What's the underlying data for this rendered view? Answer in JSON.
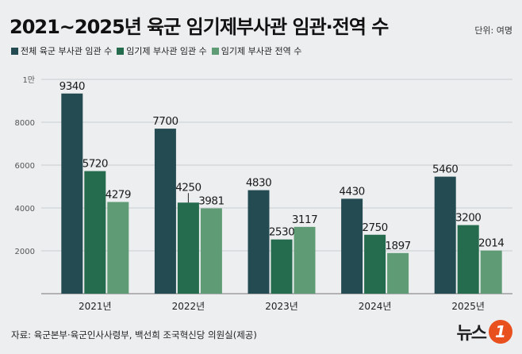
{
  "title": "2021~2025년 육군 임기제부사관 임관·전역 수",
  "unit": "단위: 여명",
  "source": "자료: 육군본부·육군인사사령부, 백선희 조국혁신당 의원실(제공)",
  "logo": {
    "text": "뉴스",
    "mark": "1"
  },
  "colors": {
    "series1": "#244a52",
    "series2": "#256b4e",
    "series3": "#5f9c76",
    "grid": "#c9cdd1"
  },
  "chart_data": {
    "type": "bar",
    "categories": [
      "2021년",
      "2022년",
      "2023년",
      "2024년",
      "2025년"
    ],
    "series": [
      {
        "name": "전체 육군 부사관 임관 수",
        "values": [
          9340,
          7700,
          4830,
          4430,
          5460
        ]
      },
      {
        "name": "임기제 부사관 임관 수",
        "values": [
          5720,
          4250,
          2530,
          2750,
          3200
        ]
      },
      {
        "name": "임기제 부사관 전역 수",
        "values": [
          4279,
          3981,
          3117,
          1897,
          2014
        ]
      }
    ],
    "yticks": [
      "2000",
      "4000",
      "6000",
      "8000",
      "1만"
    ],
    "ytick_values": [
      2000,
      4000,
      6000,
      8000,
      10000
    ],
    "ylim": [
      0,
      10000
    ],
    "grid": true,
    "legend_position": "top-left"
  }
}
